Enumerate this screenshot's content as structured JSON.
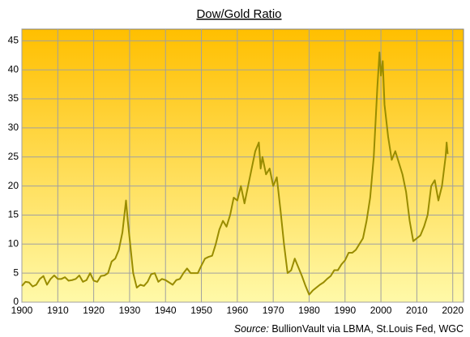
{
  "chart_data": {
    "type": "line",
    "title": "Dow/Gold Ratio",
    "source_label": "Source:",
    "source": "BullionVault via LBMA, St.Louis Fed, WGC",
    "x": [
      1900,
      1901,
      1902,
      1903,
      1904,
      1905,
      1906,
      1907,
      1908,
      1909,
      1910,
      1911,
      1912,
      1913,
      1914,
      1915,
      1916,
      1917,
      1918,
      1919,
      1920,
      1921,
      1922,
      1923,
      1924,
      1925,
      1926,
      1927,
      1928,
      1929,
      1929.5,
      1930,
      1931,
      1932,
      1933,
      1934,
      1935,
      1936,
      1937,
      1938,
      1939,
      1940,
      1941,
      1942,
      1943,
      1944,
      1945,
      1946,
      1947,
      1948,
      1949,
      1950,
      1951,
      1952,
      1953,
      1954,
      1955,
      1956,
      1957,
      1958,
      1959,
      1960,
      1961,
      1962,
      1963,
      1964,
      1965,
      1966,
      1966.5,
      1967,
      1968,
      1969,
      1970,
      1971,
      1972,
      1973,
      1974,
      1975,
      1976,
      1977,
      1978,
      1979,
      1980,
      1981,
      1982,
      1983,
      1984,
      1985,
      1986,
      1987,
      1988,
      1989,
      1990,
      1991,
      1992,
      1993,
      1994,
      1995,
      1996,
      1997,
      1998,
      1999,
      1999.6,
      2000,
      2000.5,
      2001,
      2002,
      2003,
      2004,
      2005,
      2006,
      2007,
      2008,
      2009,
      2010,
      2011,
      2012,
      2013,
      2014,
      2015,
      2016,
      2017,
      2018,
      2018.3,
      2018.6
    ],
    "series": [
      {
        "name": "Dow/Gold Ratio",
        "color": "#998c00",
        "values": [
          2.8,
          3.5,
          3.4,
          2.7,
          3.0,
          4.0,
          4.5,
          3.0,
          4.0,
          4.6,
          4.0,
          4.0,
          4.3,
          3.7,
          3.8,
          4.0,
          4.6,
          3.5,
          3.8,
          5.0,
          3.7,
          3.5,
          4.5,
          4.6,
          5.0,
          7.0,
          7.5,
          9.0,
          12.0,
          17.5,
          14.0,
          11.0,
          5.0,
          2.5,
          3.0,
          2.8,
          3.5,
          4.8,
          5.0,
          3.5,
          4.0,
          3.8,
          3.4,
          3.0,
          3.8,
          4.0,
          5.0,
          5.8,
          5.0,
          5.0,
          5.0,
          6.3,
          7.5,
          7.8,
          8.0,
          10.0,
          12.5,
          14.0,
          13.0,
          15.0,
          18.0,
          17.5,
          20.0,
          17.0,
          20.0,
          23.0,
          26.0,
          27.5,
          23.0,
          25.0,
          22.0,
          23.0,
          20.0,
          21.5,
          16.0,
          10.0,
          5.0,
          5.5,
          7.5,
          6.0,
          4.5,
          2.8,
          1.3,
          2.0,
          2.5,
          3.0,
          3.4,
          4.0,
          4.5,
          5.5,
          5.5,
          6.5,
          7.2,
          8.5,
          8.5,
          9.0,
          10.0,
          11.0,
          14.0,
          18.0,
          25.0,
          37.0,
          43.0,
          39.0,
          41.5,
          34.0,
          28.5,
          24.5,
          26.0,
          24.0,
          22.0,
          19.0,
          14.0,
          10.5,
          11.0,
          11.5,
          13.0,
          15.0,
          20.0,
          21.0,
          17.5,
          20.0,
          25.0,
          27.5,
          25.5
        ]
      }
    ],
    "xlim": [
      1900,
      2023
    ],
    "xticks": [
      1900,
      1910,
      1920,
      1930,
      1940,
      1950,
      1960,
      1970,
      1980,
      1990,
      2000,
      2010,
      2020
    ],
    "ylim": [
      0,
      47
    ],
    "yticks": [
      0,
      5,
      10,
      15,
      20,
      25,
      30,
      35,
      40,
      45
    ],
    "grid": true
  }
}
